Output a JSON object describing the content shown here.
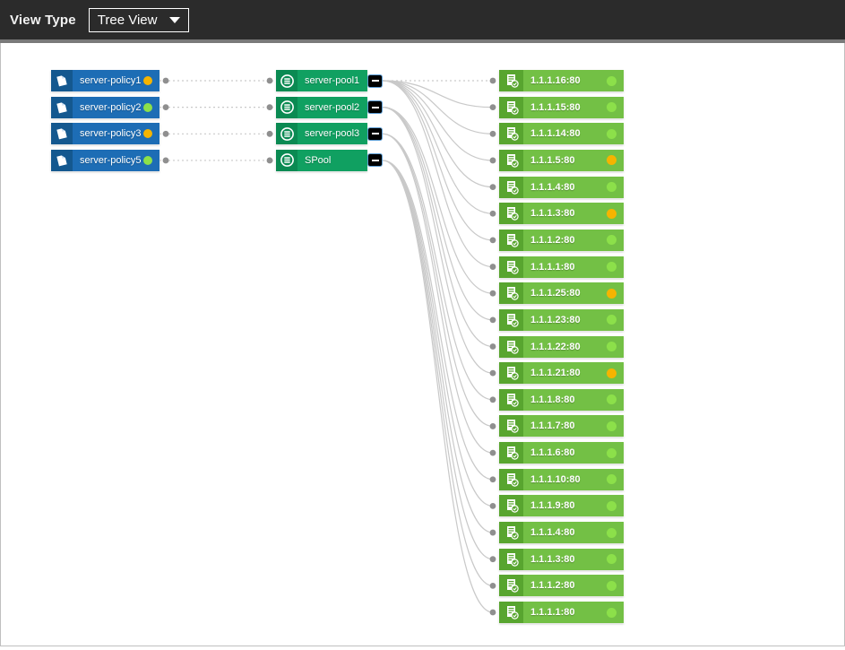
{
  "header": {
    "view_type_label": "View Type",
    "view_type_value": "Tree View"
  },
  "policies": [
    {
      "label": "server-policy1",
      "status": "warning"
    },
    {
      "label": "server-policy2",
      "status": "ok"
    },
    {
      "label": "server-policy3",
      "status": "warning"
    },
    {
      "label": "server-policy5",
      "status": "ok"
    }
  ],
  "pools": [
    {
      "label": "server-pool1"
    },
    {
      "label": "server-pool2"
    },
    {
      "label": "server-pool3"
    },
    {
      "label": "SPool"
    }
  ],
  "servers": [
    {
      "label": "1.1.1.16:80",
      "status": "ok"
    },
    {
      "label": "1.1.1.15:80",
      "status": "ok"
    },
    {
      "label": "1.1.1.14:80",
      "status": "ok"
    },
    {
      "label": "1.1.1.5:80",
      "status": "warning"
    },
    {
      "label": "1.1.1.4:80",
      "status": "ok"
    },
    {
      "label": "1.1.1.3:80",
      "status": "warning"
    },
    {
      "label": "1.1.1.2:80",
      "status": "ok"
    },
    {
      "label": "1.1.1.1:80",
      "status": "ok"
    },
    {
      "label": "1.1.1.25:80",
      "status": "warning"
    },
    {
      "label": "1.1.1.23:80",
      "status": "ok"
    },
    {
      "label": "1.1.1.22:80",
      "status": "ok"
    },
    {
      "label": "1.1.1.21:80",
      "status": "warning"
    },
    {
      "label": "1.1.1.8:80",
      "status": "ok"
    },
    {
      "label": "1.1.1.7:80",
      "status": "ok"
    },
    {
      "label": "1.1.1.6:80",
      "status": "ok"
    },
    {
      "label": "1.1.1.10:80",
      "status": "ok"
    },
    {
      "label": "1.1.1.9:80",
      "status": "ok"
    },
    {
      "label": "1.1.1.4:80",
      "status": "ok"
    },
    {
      "label": "1.1.1.3:80",
      "status": "ok"
    },
    {
      "label": "1.1.1.2:80",
      "status": "ok"
    },
    {
      "label": "1.1.1.1:80",
      "status": "ok"
    }
  ],
  "links": {
    "policy_to_pool": [
      [
        0,
        0
      ],
      [
        1,
        1
      ],
      [
        2,
        2
      ],
      [
        3,
        3
      ]
    ],
    "pool_to_server": [
      [
        0,
        [
          0,
          1,
          2,
          3,
          4,
          5,
          6,
          7
        ]
      ],
      [
        1,
        [
          8,
          9,
          10,
          11
        ]
      ],
      [
        2,
        [
          12,
          13,
          14
        ]
      ],
      [
        3,
        [
          15,
          16,
          17,
          18,
          19,
          20
        ]
      ]
    ]
  },
  "colors": {
    "policy_body": "#1d6db5",
    "policy_icon_bg": "#14588f",
    "pool_body": "#10a061",
    "pool_icon_bg": "#0a8a52",
    "server_body": "#73c045",
    "server_icon_bg": "#58a52f",
    "status_ok": "#8ce04a",
    "status_warning": "#f5b400",
    "wire": "#c9c9c9",
    "wire_dot": "#8f8f8f"
  }
}
